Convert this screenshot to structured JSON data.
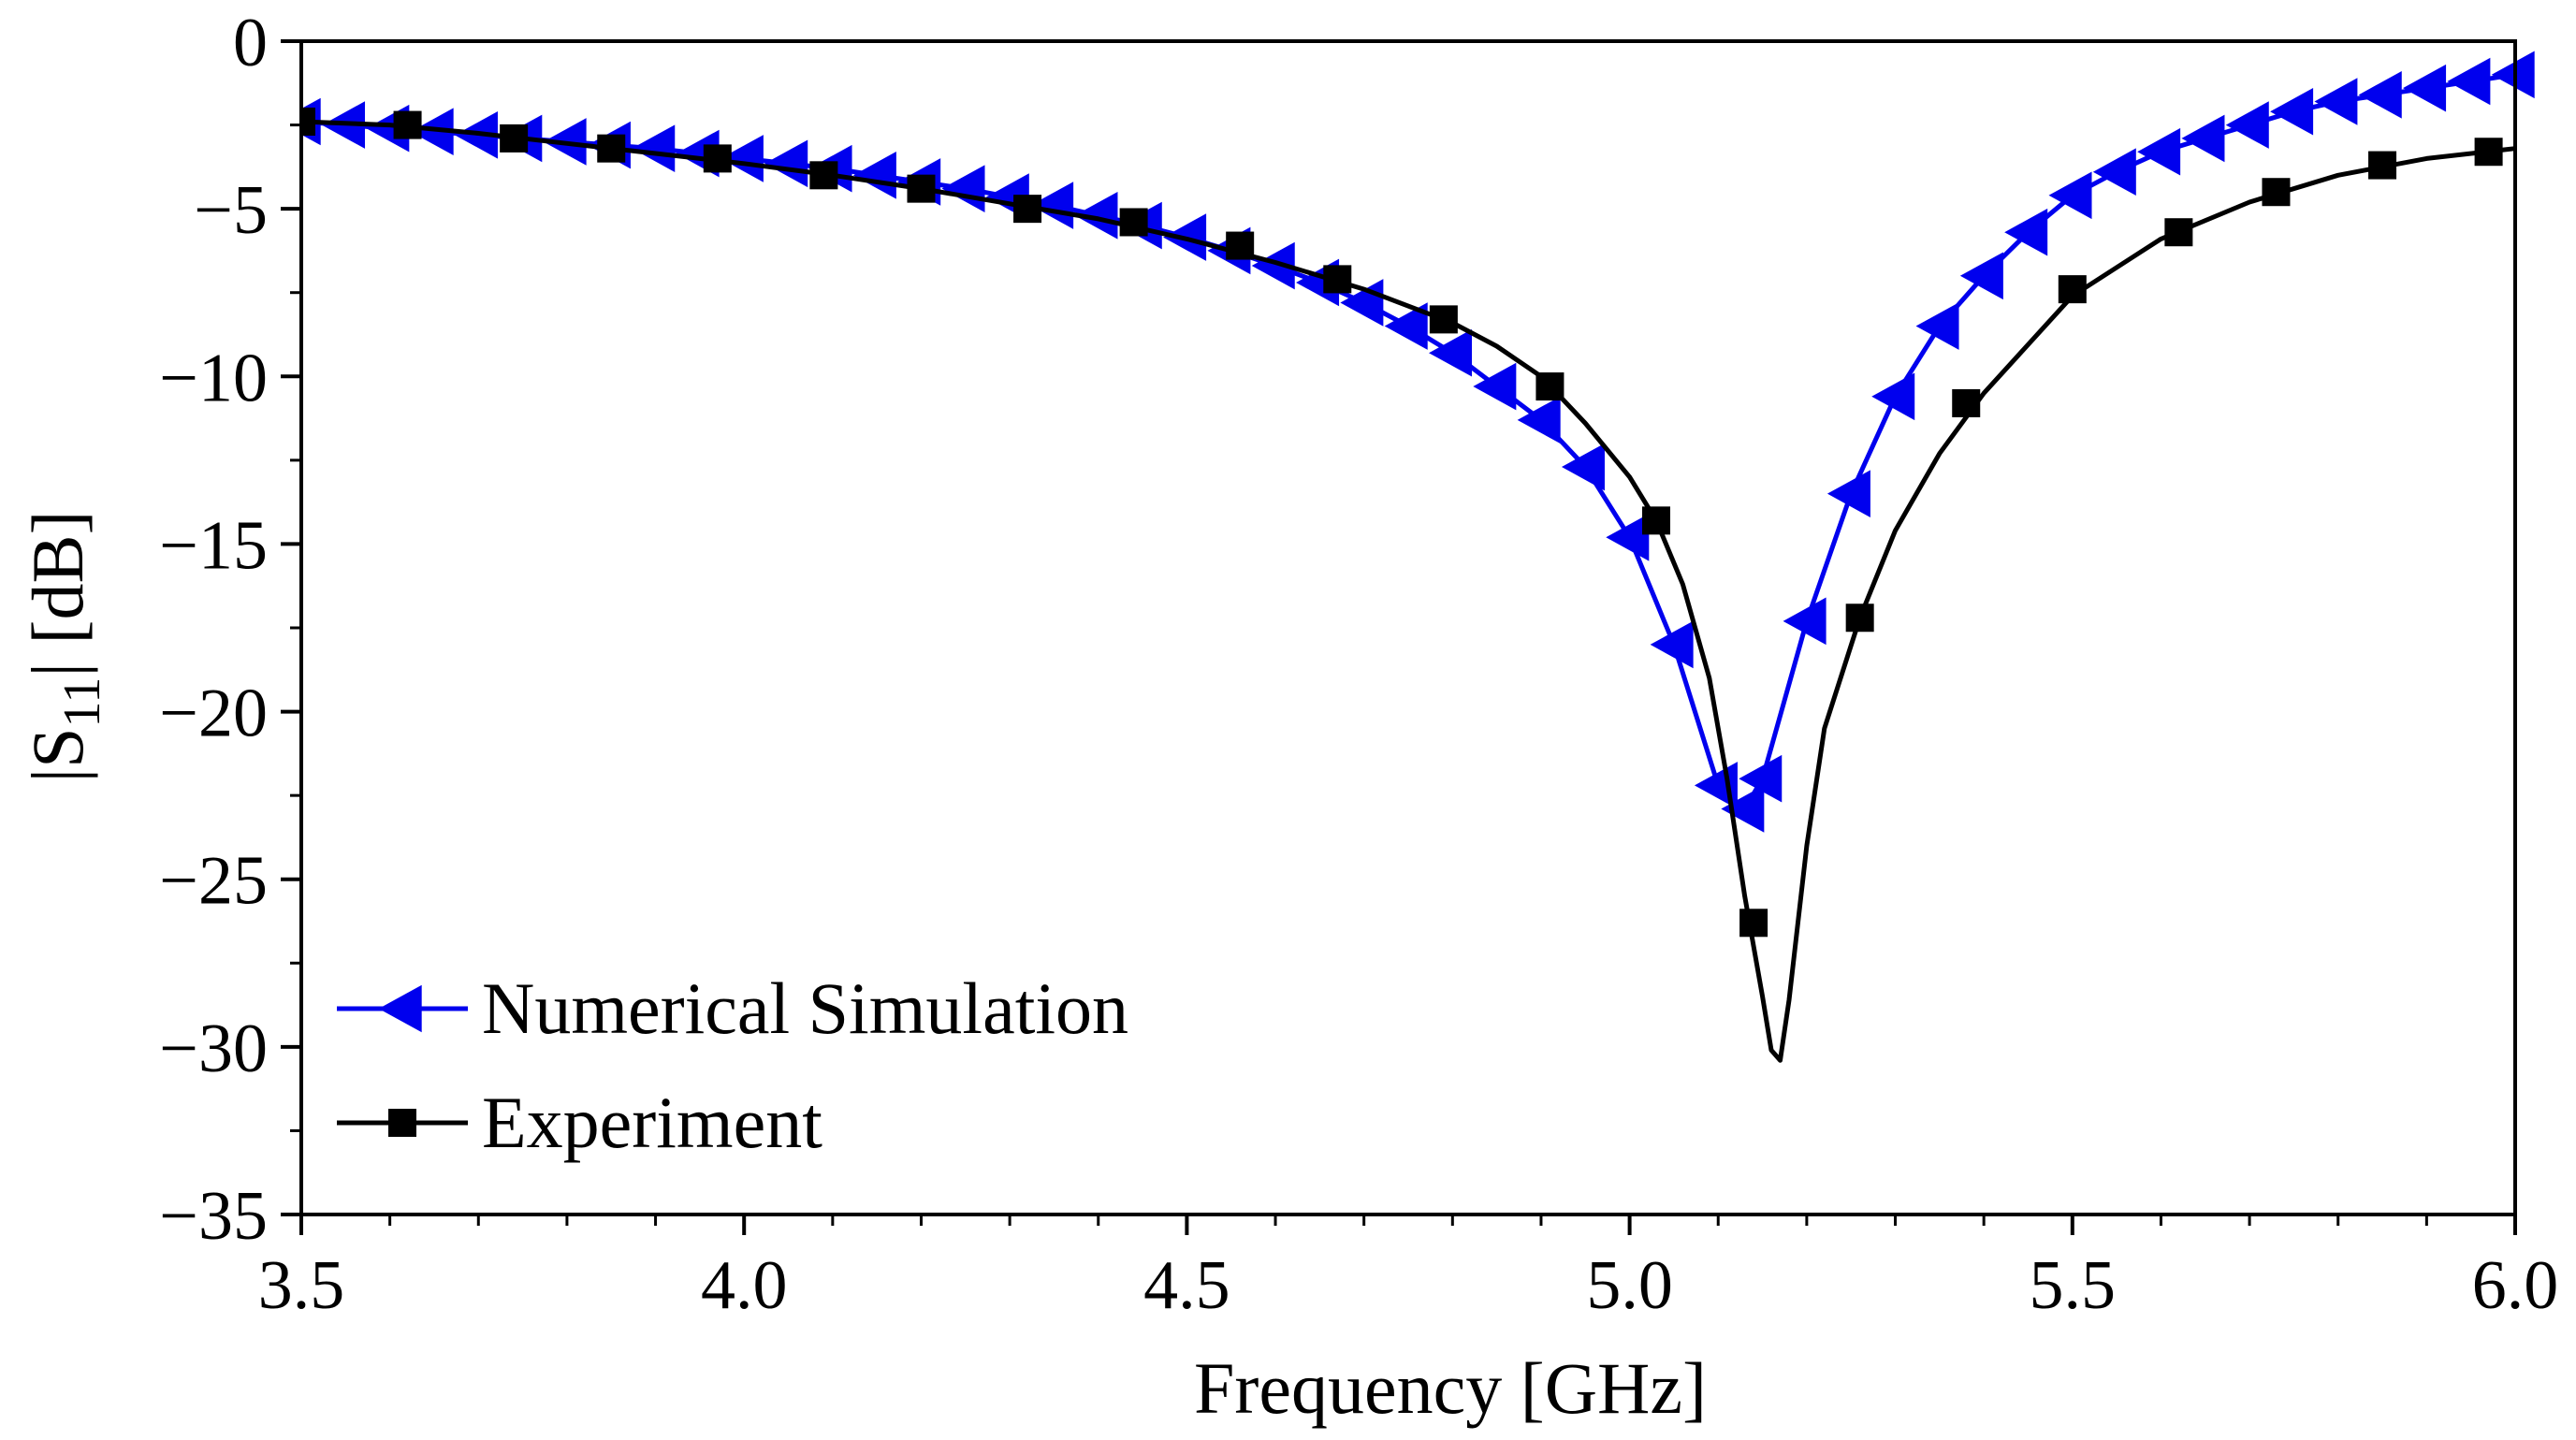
{
  "chart_data": {
    "type": "line",
    "title": "",
    "xlabel": "Frequency [GHz]",
    "ylabel_parts": {
      "pre": "|S",
      "sub": "11",
      "post": "| [dB]"
    },
    "xlim": [
      3.5,
      6.0
    ],
    "ylim": [
      -35,
      0
    ],
    "x_ticks": [
      {
        "v": 3.5,
        "label": "3.5"
      },
      {
        "v": 4.0,
        "label": "4.0"
      },
      {
        "v": 4.5,
        "label": "4.5"
      },
      {
        "v": 5.0,
        "label": "5.0"
      },
      {
        "v": 5.5,
        "label": "5.5"
      },
      {
        "v": 6.0,
        "label": "6.0"
      }
    ],
    "y_ticks": [
      {
        "v": 0,
        "label": "0"
      },
      {
        "v": -5,
        "label": "−5"
      },
      {
        "v": -10,
        "label": "−10"
      },
      {
        "v": -15,
        "label": "−15"
      },
      {
        "v": -20,
        "label": "−20"
      },
      {
        "v": -25,
        "label": "−25"
      },
      {
        "v": -30,
        "label": "−30"
      },
      {
        "v": -35,
        "label": "−35"
      }
    ],
    "legend_position": "bottom-left",
    "series": [
      {
        "name": "Numerical Simulation",
        "color": "#0000ee",
        "marker": "triangle-left",
        "x": [
          3.5,
          3.55,
          3.6,
          3.65,
          3.7,
          3.75,
          3.8,
          3.85,
          3.9,
          3.95,
          4.0,
          4.05,
          4.1,
          4.15,
          4.2,
          4.25,
          4.3,
          4.35,
          4.4,
          4.45,
          4.5,
          4.55,
          4.6,
          4.65,
          4.7,
          4.75,
          4.8,
          4.85,
          4.9,
          4.95,
          5.0,
          5.05,
          5.1,
          5.13,
          5.15,
          5.2,
          5.25,
          5.3,
          5.35,
          5.4,
          5.45,
          5.5,
          5.55,
          5.6,
          5.65,
          5.7,
          5.75,
          5.8,
          5.85,
          5.9,
          5.95,
          6.0
        ],
        "y": [
          -2.4,
          -2.5,
          -2.6,
          -2.7,
          -2.8,
          -2.9,
          -3.0,
          -3.1,
          -3.2,
          -3.35,
          -3.5,
          -3.65,
          -3.8,
          -4.0,
          -4.2,
          -4.4,
          -4.65,
          -4.9,
          -5.2,
          -5.5,
          -5.85,
          -6.25,
          -6.7,
          -7.2,
          -7.8,
          -8.5,
          -9.3,
          -10.3,
          -11.3,
          -12.7,
          -14.8,
          -18.0,
          -22.2,
          -22.9,
          -22.0,
          -17.3,
          -13.5,
          -10.6,
          -8.5,
          -7.0,
          -5.7,
          -4.6,
          -3.9,
          -3.3,
          -2.9,
          -2.5,
          -2.1,
          -1.8,
          -1.6,
          -1.4,
          -1.2,
          -1.0
        ]
      },
      {
        "name": "Experiment",
        "color": "#000000",
        "marker": "square",
        "x": [
          3.5,
          3.62,
          3.74,
          3.85,
          3.97,
          4.09,
          4.2,
          4.32,
          4.44,
          4.56,
          4.67,
          4.79,
          4.91,
          5.03,
          5.14,
          5.26,
          5.38,
          5.5,
          5.62,
          5.73,
          5.85,
          5.97
        ],
        "y": [
          -2.4,
          -2.5,
          -2.9,
          -3.2,
          -3.5,
          -4.0,
          -4.4,
          -5.0,
          -5.4,
          -6.1,
          -7.1,
          -8.3,
          -10.3,
          -14.3,
          -26.3,
          -17.2,
          -10.8,
          -7.4,
          -5.7,
          -4.5,
          -3.7,
          -3.3
        ],
        "curve_x": [
          3.5,
          3.6,
          3.7,
          3.8,
          3.9,
          4.0,
          4.1,
          4.2,
          4.3,
          4.4,
          4.5,
          4.6,
          4.7,
          4.8,
          4.85,
          4.9,
          4.95,
          5.0,
          5.03,
          5.06,
          5.09,
          5.11,
          5.13,
          5.15,
          5.16,
          5.17,
          5.18,
          5.2,
          5.22,
          5.26,
          5.3,
          5.35,
          5.4,
          5.5,
          5.6,
          5.7,
          5.8,
          5.9,
          6.0
        ],
        "curve_y": [
          -2.4,
          -2.5,
          -2.75,
          -3.05,
          -3.35,
          -3.65,
          -4.0,
          -4.4,
          -4.85,
          -5.3,
          -5.9,
          -6.6,
          -7.4,
          -8.4,
          -9.1,
          -10.0,
          -11.4,
          -13.0,
          -14.3,
          -16.2,
          -19.0,
          -22.0,
          -25.5,
          -28.5,
          -30.1,
          -30.4,
          -28.6,
          -24.0,
          -20.5,
          -17.2,
          -14.6,
          -12.3,
          -10.5,
          -7.6,
          -5.9,
          -4.8,
          -4.0,
          -3.5,
          -3.2
        ]
      }
    ]
  }
}
